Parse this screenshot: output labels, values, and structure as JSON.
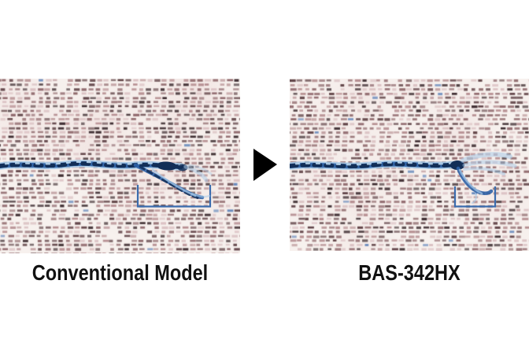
{
  "comparison": {
    "before_label": "Conventional Model",
    "after_label": "BAS-342HX"
  },
  "colors": {
    "page_bg": "#ffffff",
    "label_color": "#111111",
    "arrow_black": "#000000",
    "fabric_base": "#f7f1ee",
    "fabric_speck_dark": "#322125",
    "fabric_speck_mid": "#8a6266",
    "fabric_speck_light": "#d8bdbf",
    "thread_blue": "#2f63a8",
    "thread_dark": "#122e57",
    "thread_light": "#a9cce9",
    "bracket_blue": "#3a6cae"
  }
}
